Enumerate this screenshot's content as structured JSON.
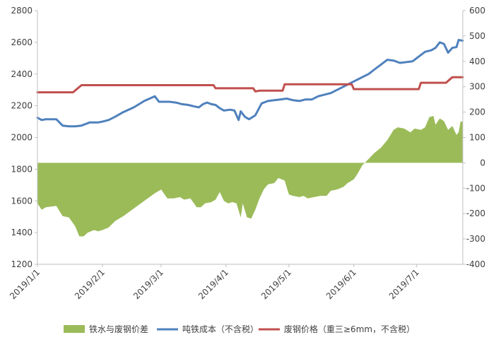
{
  "chart_data": {
    "type": "line",
    "x_categories": [
      "2019/1/1",
      "2019/2/1",
      "2019/3/1",
      "2019/4/1",
      "2019/5/1",
      "2019/6/1",
      "2019/7/1"
    ],
    "ylim_left": [
      1200,
      2800
    ],
    "yticks_left": [
      1200,
      1400,
      1600,
      1800,
      2000,
      2200,
      2400,
      2600,
      2800
    ],
    "ylim_right": [
      -400,
      600
    ],
    "yticks_right": [
      -400,
      -300,
      -200,
      -100,
      0,
      100,
      200,
      300,
      400,
      500,
      600
    ],
    "grid": false,
    "legend_position": "bottom",
    "series": [
      {
        "name": "铁水与废钢价差",
        "kind": "area",
        "axis": "right",
        "color": "#9bbb59",
        "points": [
          [
            "2019/1/1",
            -160
          ],
          [
            "2019/1/3",
            -185
          ],
          [
            "2019/1/5",
            -175
          ],
          [
            "2019/1/10",
            -170
          ],
          [
            "2019/1/13",
            -210
          ],
          [
            "2019/1/16",
            -215
          ],
          [
            "2019/1/19",
            -250
          ],
          [
            "2019/1/21",
            -290
          ],
          [
            "2019/1/23",
            -290
          ],
          [
            "2019/1/25",
            -275
          ],
          [
            "2019/1/28",
            -265
          ],
          [
            "2019/1/30",
            -270
          ],
          [
            "2019/2/1",
            -265
          ],
          [
            "2019/2/4",
            -255
          ],
          [
            "2019/2/7",
            -230
          ],
          [
            "2019/2/11",
            -210
          ],
          [
            "2019/2/16",
            -180
          ],
          [
            "2019/2/21",
            -150
          ],
          [
            "2019/2/26",
            -120
          ],
          [
            "2019/3/1",
            -105
          ],
          [
            "2019/3/4",
            -140
          ],
          [
            "2019/3/7",
            -140
          ],
          [
            "2019/3/10",
            -135
          ],
          [
            "2019/3/12",
            -145
          ],
          [
            "2019/3/15",
            -140
          ],
          [
            "2019/3/18",
            -175
          ],
          [
            "2019/3/20",
            -175
          ],
          [
            "2019/3/22",
            -160
          ],
          [
            "2019/3/25",
            -155
          ],
          [
            "2019/3/27",
            -145
          ],
          [
            "2019/3/29",
            -115
          ],
          [
            "2019/3/31",
            -150
          ],
          [
            "2019/4/2",
            -160
          ],
          [
            "2019/4/4",
            -155
          ],
          [
            "2019/4/6",
            -160
          ],
          [
            "2019/4/8",
            -215
          ],
          [
            "2019/4/9",
            -160
          ],
          [
            "2019/4/11",
            -215
          ],
          [
            "2019/4/13",
            -220
          ],
          [
            "2019/4/15",
            -185
          ],
          [
            "2019/4/17",
            -140
          ],
          [
            "2019/4/19",
            -105
          ],
          [
            "2019/4/21",
            -85
          ],
          [
            "2019/4/24",
            -80
          ],
          [
            "2019/4/26",
            -60
          ],
          [
            "2019/4/29",
            -70
          ],
          [
            "2019/5/1",
            -125
          ],
          [
            "2019/5/3",
            -130
          ],
          [
            "2019/5/6",
            -135
          ],
          [
            "2019/5/8",
            -130
          ],
          [
            "2019/5/10",
            -140
          ],
          [
            "2019/5/13",
            -135
          ],
          [
            "2019/5/16",
            -130
          ],
          [
            "2019/5/19",
            -130
          ],
          [
            "2019/5/21",
            -110
          ],
          [
            "2019/5/24",
            -105
          ],
          [
            "2019/5/27",
            -95
          ],
          [
            "2019/5/29",
            -80
          ],
          [
            "2019/6/1",
            -65
          ],
          [
            "2019/6/3",
            -40
          ],
          [
            "2019/6/5",
            -10
          ],
          [
            "2019/6/8",
            15
          ],
          [
            "2019/6/11",
            40
          ],
          [
            "2019/6/14",
            60
          ],
          [
            "2019/6/17",
            90
          ],
          [
            "2019/6/20",
            130
          ],
          [
            "2019/6/22",
            140
          ],
          [
            "2019/6/25",
            135
          ],
          [
            "2019/6/28",
            120
          ],
          [
            "2019/6/30",
            135
          ],
          [
            "2019/7/3",
            130
          ],
          [
            "2019/7/5",
            140
          ],
          [
            "2019/7/7",
            180
          ],
          [
            "2019/7/9",
            185
          ],
          [
            "2019/7/10",
            150
          ],
          [
            "2019/7/12",
            175
          ],
          [
            "2019/7/14",
            165
          ],
          [
            "2019/7/16",
            130
          ],
          [
            "2019/7/18",
            145
          ],
          [
            "2019/7/20",
            110
          ],
          [
            "2019/7/21",
            120
          ],
          [
            "2019/7/22",
            165
          ],
          [
            "2019/7/23",
            160
          ]
        ]
      },
      {
        "name": "吨铁成本（不含税）",
        "kind": "line",
        "axis": "left",
        "color": "#4f81bd",
        "points": [
          [
            "2019/1/1",
            2125
          ],
          [
            "2019/1/3",
            2110
          ],
          [
            "2019/1/5",
            2115
          ],
          [
            "2019/1/10",
            2115
          ],
          [
            "2019/1/13",
            2075
          ],
          [
            "2019/1/16",
            2070
          ],
          [
            "2019/1/19",
            2070
          ],
          [
            "2019/1/22",
            2075
          ],
          [
            "2019/1/26",
            2095
          ],
          [
            "2019/1/30",
            2095
          ],
          [
            "2019/2/1",
            2100
          ],
          [
            "2019/2/4",
            2110
          ],
          [
            "2019/2/7",
            2130
          ],
          [
            "2019/2/11",
            2160
          ],
          [
            "2019/2/16",
            2190
          ],
          [
            "2019/2/21",
            2230
          ],
          [
            "2019/2/26",
            2260
          ],
          [
            "2019/2/28",
            2225
          ],
          [
            "2019/3/2",
            2225
          ],
          [
            "2019/3/5",
            2225
          ],
          [
            "2019/3/8",
            2220
          ],
          [
            "2019/3/11",
            2210
          ],
          [
            "2019/3/14",
            2205
          ],
          [
            "2019/3/17",
            2195
          ],
          [
            "2019/3/19",
            2190
          ],
          [
            "2019/3/21",
            2210
          ],
          [
            "2019/3/23",
            2220
          ],
          [
            "2019/3/25",
            2210
          ],
          [
            "2019/3/27",
            2205
          ],
          [
            "2019/3/29",
            2185
          ],
          [
            "2019/3/31",
            2170
          ],
          [
            "2019/4/3",
            2175
          ],
          [
            "2019/4/5",
            2170
          ],
          [
            "2019/4/7",
            2110
          ],
          [
            "2019/4/8",
            2165
          ],
          [
            "2019/4/10",
            2130
          ],
          [
            "2019/4/12",
            2115
          ],
          [
            "2019/4/15",
            2140
          ],
          [
            "2019/4/18",
            2215
          ],
          [
            "2019/4/21",
            2230
          ],
          [
            "2019/4/24",
            2235
          ],
          [
            "2019/4/27",
            2240
          ],
          [
            "2019/4/30",
            2245
          ],
          [
            "2019/5/3",
            2235
          ],
          [
            "2019/5/6",
            2230
          ],
          [
            "2019/5/9",
            2240
          ],
          [
            "2019/5/12",
            2240
          ],
          [
            "2019/5/15",
            2260
          ],
          [
            "2019/5/18",
            2270
          ],
          [
            "2019/5/21",
            2280
          ],
          [
            "2019/5/24",
            2300
          ],
          [
            "2019/5/27",
            2320
          ],
          [
            "2019/5/30",
            2340
          ],
          [
            "2019/6/2",
            2360
          ],
          [
            "2019/6/5",
            2380
          ],
          [
            "2019/6/8",
            2400
          ],
          [
            "2019/6/11",
            2430
          ],
          [
            "2019/6/14",
            2460
          ],
          [
            "2019/6/17",
            2490
          ],
          [
            "2019/6/20",
            2485
          ],
          [
            "2019/6/23",
            2470
          ],
          [
            "2019/6/26",
            2475
          ],
          [
            "2019/6/29",
            2480
          ],
          [
            "2019/7/2",
            2510
          ],
          [
            "2019/7/5",
            2540
          ],
          [
            "2019/7/8",
            2550
          ],
          [
            "2019/7/10",
            2565
          ],
          [
            "2019/7/12",
            2600
          ],
          [
            "2019/7/14",
            2590
          ],
          [
            "2019/7/16",
            2535
          ],
          [
            "2019/7/18",
            2565
          ],
          [
            "2019/7/20",
            2570
          ],
          [
            "2019/7/21",
            2615
          ],
          [
            "2019/7/23",
            2610
          ]
        ]
      },
      {
        "name": "废钢价格（重三≥6mm，不含税）",
        "kind": "line",
        "axis": "left",
        "color": "#c0504d",
        "points": [
          [
            "2019/1/1",
            2285
          ],
          [
            "2019/1/18",
            2285
          ],
          [
            "2019/1/22",
            2330
          ],
          [
            "2019/2/1",
            2330
          ],
          [
            "2019/3/26",
            2330
          ],
          [
            "2019/3/27",
            2310
          ],
          [
            "2019/4/14",
            2310
          ],
          [
            "2019/4/15",
            2290
          ],
          [
            "2019/4/17",
            2295
          ],
          [
            "2019/4/28",
            2295
          ],
          [
            "2019/4/29",
            2335
          ],
          [
            "2019/5/31",
            2335
          ],
          [
            "2019/6/1",
            2305
          ],
          [
            "2019/7/2",
            2305
          ],
          [
            "2019/7/3",
            2345
          ],
          [
            "2019/7/15",
            2345
          ],
          [
            "2019/7/18",
            2380
          ],
          [
            "2019/7/23",
            2380
          ]
        ]
      }
    ]
  }
}
